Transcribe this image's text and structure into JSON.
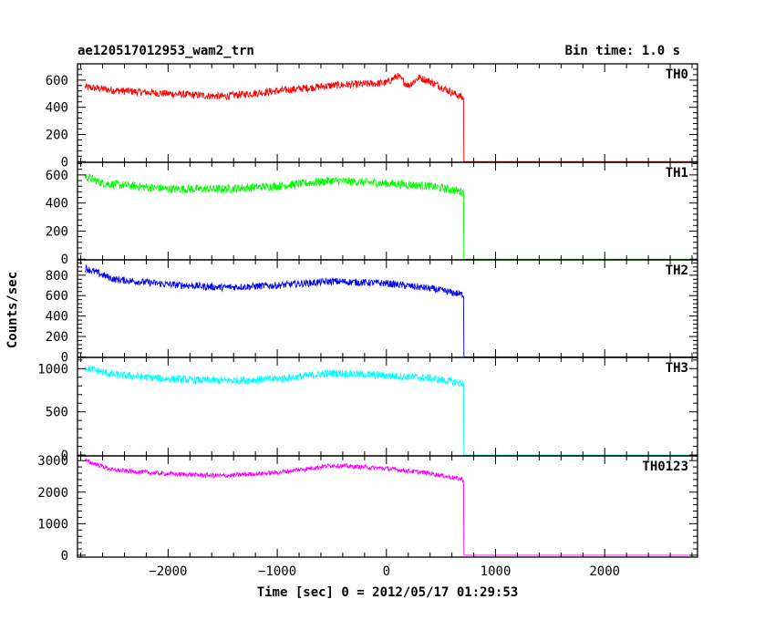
{
  "header": {
    "title": "ae120517012953_wam2_trn",
    "bin_time": "Bin time: 1.0 s"
  },
  "chart_data": {
    "type": "line",
    "xlabel": "Time [sec] 0 = 2012/05/17 01:29:53",
    "ylabel": "Counts/sec",
    "xlim": [
      -2830,
      2850
    ],
    "x_ticks": [
      -2000,
      -1000,
      0,
      1000,
      2000
    ],
    "x_tick_labels": [
      "−2000",
      "−1000",
      "0",
      "1000",
      "2000"
    ],
    "grid": false,
    "panels": [
      {
        "name": "TH0",
        "color": "#ff0000",
        "ylim": [
          -5,
          720
        ],
        "y_ticks": [
          0,
          200,
          400,
          600
        ],
        "y_tick_labels": [
          "0",
          "200",
          "400",
          "600"
        ],
        "x_end": 2770,
        "dropout_time": 710,
        "level_after_dropout": 0,
        "points": [
          [
            -2760,
            550
          ],
          [
            -2500,
            525
          ],
          [
            -2000,
            500
          ],
          [
            -1500,
            480
          ],
          [
            -1000,
            520
          ],
          [
            -500,
            560
          ],
          [
            0,
            580
          ],
          [
            100,
            630
          ],
          [
            200,
            560
          ],
          [
            300,
            620
          ],
          [
            400,
            590
          ],
          [
            600,
            510
          ],
          [
            700,
            470
          ]
        ],
        "noise": 28
      },
      {
        "name": "TH1",
        "color": "#00ff00",
        "ylim": [
          -5,
          690
        ],
        "y_ticks": [
          0,
          200,
          400,
          600
        ],
        "y_tick_labels": [
          "0",
          "200",
          "400",
          "600"
        ],
        "x_end": 2770,
        "dropout_time": 710,
        "level_after_dropout": 0,
        "points": [
          [
            -2760,
            590
          ],
          [
            -2600,
            540
          ],
          [
            -2000,
            500
          ],
          [
            -1500,
            500
          ],
          [
            -1000,
            520
          ],
          [
            -500,
            560
          ],
          [
            0,
            540
          ],
          [
            400,
            520
          ],
          [
            700,
            480
          ]
        ],
        "noise": 30
      },
      {
        "name": "TH2",
        "color": "#0000ff",
        "ylim": [
          -5,
          950
        ],
        "y_ticks": [
          0,
          200,
          400,
          600,
          800
        ],
        "y_tick_labels": [
          "0",
          "200",
          "400",
          "600",
          "800"
        ],
        "x_end": 2770,
        "dropout_time": 710,
        "level_after_dropout": 0,
        "points": [
          [
            -2760,
            870
          ],
          [
            -2500,
            760
          ],
          [
            -2000,
            710
          ],
          [
            -1500,
            680
          ],
          [
            -1000,
            700
          ],
          [
            -500,
            740
          ],
          [
            0,
            720
          ],
          [
            400,
            670
          ],
          [
            700,
            610
          ]
        ],
        "noise": 35
      },
      {
        "name": "TH3",
        "color": "#00ffff",
        "ylim": [
          -10,
          1130
        ],
        "y_ticks": [
          0,
          500,
          1000
        ],
        "y_tick_labels": [
          "0",
          "500",
          "1000"
        ],
        "x_end": 2770,
        "dropout_time": 710,
        "level_after_dropout": 0,
        "points": [
          [
            -2760,
            1010
          ],
          [
            -2500,
            930
          ],
          [
            -2000,
            880
          ],
          [
            -1500,
            860
          ],
          [
            -1000,
            880
          ],
          [
            -500,
            950
          ],
          [
            0,
            920
          ],
          [
            400,
            890
          ],
          [
            700,
            830
          ]
        ],
        "noise": 45
      },
      {
        "name": "TH0123",
        "color": "#ff00ff",
        "ylim": [
          -60,
          3150
        ],
        "y_ticks": [
          0,
          1000,
          2000,
          3000
        ],
        "y_tick_labels": [
          "0",
          "1000",
          "2000",
          "3000"
        ],
        "x_end": 2770,
        "dropout_time": 710,
        "level_after_dropout": 0,
        "points": [
          [
            -2760,
            3000
          ],
          [
            -2500,
            2700
          ],
          [
            -2000,
            2580
          ],
          [
            -1500,
            2520
          ],
          [
            -1000,
            2620
          ],
          [
            -500,
            2850
          ],
          [
            0,
            2750
          ],
          [
            400,
            2600
          ],
          [
            700,
            2400
          ]
        ],
        "noise": 70
      }
    ]
  }
}
